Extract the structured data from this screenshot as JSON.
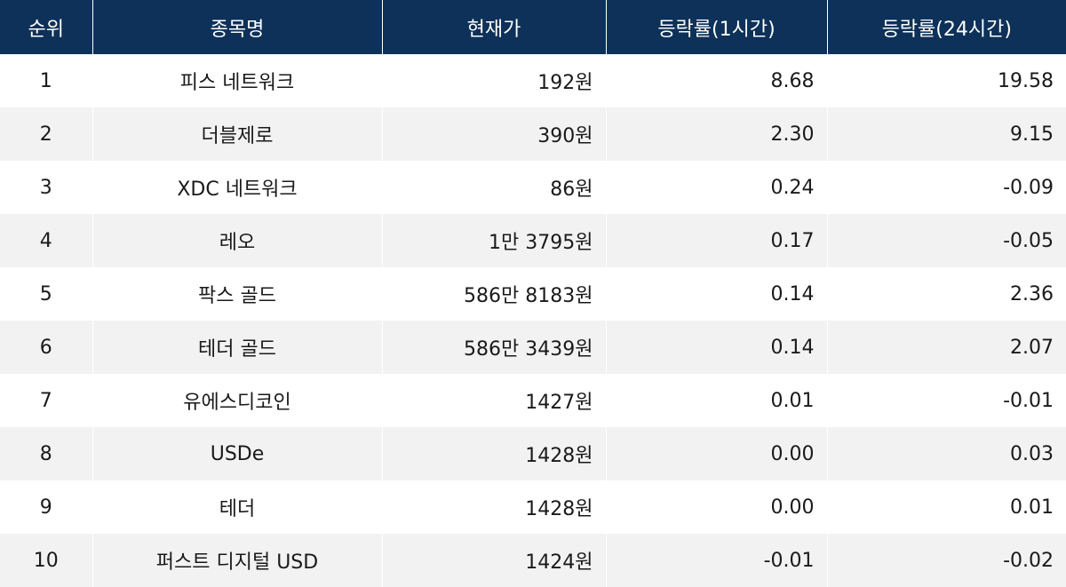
{
  "colors": {
    "header_bg": "#0d3158",
    "header_text": "#ffffff",
    "row_alt_bg": "#f2f2f2"
  },
  "headers": {
    "rank": "순위",
    "name": "종목명",
    "price": "현재가",
    "change_1h": "등락률(1시간)",
    "change_24h": "등락률(24시간)"
  },
  "rows": [
    {
      "rank": "1",
      "name": "피스 네트워크",
      "price": "192원",
      "change_1h": "8.68",
      "change_24h": "19.58"
    },
    {
      "rank": "2",
      "name": "더블제로",
      "price": "390원",
      "change_1h": "2.30",
      "change_24h": "9.15"
    },
    {
      "rank": "3",
      "name": "XDC 네트워크",
      "price": "86원",
      "change_1h": "0.24",
      "change_24h": "-0.09"
    },
    {
      "rank": "4",
      "name": "레오",
      "price": "1만 3795원",
      "change_1h": "0.17",
      "change_24h": "-0.05"
    },
    {
      "rank": "5",
      "name": "팍스 골드",
      "price": "586만 8183원",
      "change_1h": "0.14",
      "change_24h": "2.36"
    },
    {
      "rank": "6",
      "name": "테더 골드",
      "price": "586만 3439원",
      "change_1h": "0.14",
      "change_24h": "2.07"
    },
    {
      "rank": "7",
      "name": "유에스디코인",
      "price": "1427원",
      "change_1h": "0.01",
      "change_24h": "-0.01"
    },
    {
      "rank": "8",
      "name": "USDe",
      "price": "1428원",
      "change_1h": "0.00",
      "change_24h": "0.03"
    },
    {
      "rank": "9",
      "name": "테더",
      "price": "1428원",
      "change_1h": "0.00",
      "change_24h": "0.01"
    },
    {
      "rank": "10",
      "name": "퍼스트 디지털 USD",
      "price": "1424원",
      "change_1h": "-0.01",
      "change_24h": "-0.02"
    }
  ]
}
